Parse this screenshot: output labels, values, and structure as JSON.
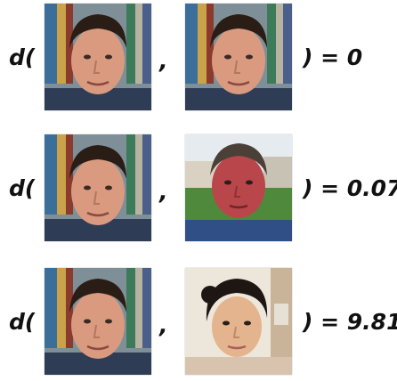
{
  "rows": [
    {
      "open": "d(",
      "comma": ",",
      "result": ") = 0",
      "right_subject": "same-man"
    },
    {
      "open": "d(",
      "comma": ",",
      "result": ") = 0.07",
      "right_subject": "other-man"
    },
    {
      "open": "d(",
      "comma": ",",
      "result": ") = 9.81",
      "right_subject": "woman"
    }
  ],
  "colors": {
    "text": "#111111",
    "bookshelf": "#6a7f8a",
    "skin_man": "#d99a80",
    "hair_dark": "#2a1d16"
  }
}
